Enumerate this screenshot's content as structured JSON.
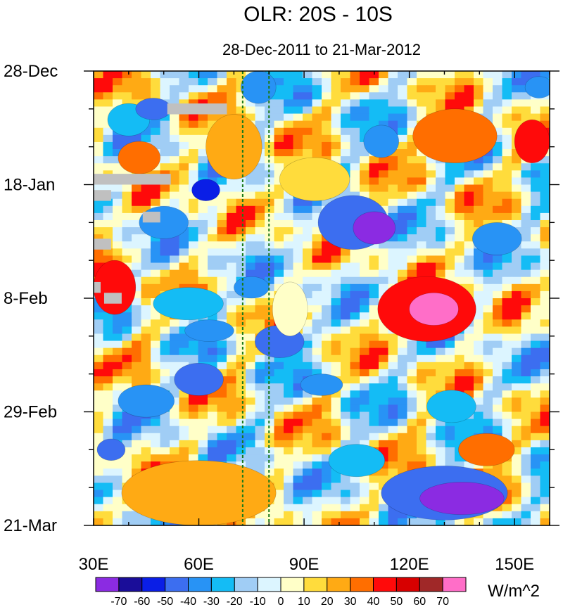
{
  "chart_data": {
    "type": "heatmap",
    "title": "OLR: 20S - 10S",
    "subtitle": "28-Dec-2011 to 21-Mar-2012",
    "x_label_unit": "longitude",
    "x_range": [
      30,
      160
    ],
    "x_ticks": [
      {
        "value": 30,
        "label": "30E"
      },
      {
        "value": 60,
        "label": "60E"
      },
      {
        "value": 90,
        "label": "90E"
      },
      {
        "value": 120,
        "label": "120E"
      },
      {
        "value": 150,
        "label": "150E"
      }
    ],
    "y_range_days": [
      0,
      84
    ],
    "y_ticks": [
      {
        "day": 0,
        "label": "28-Dec"
      },
      {
        "day": 21,
        "label": "18-Jan"
      },
      {
        "day": 42,
        "label": "8-Feb"
      },
      {
        "day": 63,
        "label": "29-Feb"
      },
      {
        "day": 84,
        "label": "21-Mar"
      }
    ],
    "reference_lines_lon": [
      72.5,
      80
    ],
    "colorbar": {
      "unit": "W/m^2",
      "levels": [
        "-70",
        "-60",
        "-50",
        "-40",
        "-30",
        "-20",
        "-10",
        "0",
        "10",
        "20",
        "30",
        "40",
        "50",
        "60",
        "70"
      ],
      "colors": [
        "#8b2be2",
        "#1a0d99",
        "#0a1ee6",
        "#3c6ef0",
        "#2893f5",
        "#14bcf5",
        "#a0cdf5",
        "#dcf5ff",
        "#ffffc8",
        "#ffdc3c",
        "#ffaa14",
        "#ff6e00",
        "#ff0a0a",
        "#d70000",
        "#a02828",
        "#ff6ec8"
      ]
    },
    "missing_color": "#c0c0c0",
    "blobs": [
      {
        "lon": 40,
        "day": 9,
        "rx": 6,
        "ry": 3,
        "level": 5
      },
      {
        "lon": 47,
        "day": 7,
        "rx": 5,
        "ry": 2,
        "level": 3
      },
      {
        "lon": 62,
        "day": 22,
        "rx": 4,
        "ry": 2,
        "level": 2
      },
      {
        "lon": 50,
        "day": 28,
        "rx": 7,
        "ry": 3,
        "level": 4
      },
      {
        "lon": 57,
        "day": 43,
        "rx": 10,
        "ry": 3,
        "level": 5
      },
      {
        "lon": 63,
        "day": 48,
        "rx": 7,
        "ry": 2,
        "level": 4
      },
      {
        "lon": 75,
        "day": 40,
        "rx": 5,
        "ry": 2,
        "level": 4
      },
      {
        "lon": 83,
        "day": 50,
        "rx": 7,
        "ry": 3,
        "level": 3
      },
      {
        "lon": 45,
        "day": 61,
        "rx": 8,
        "ry": 3,
        "level": 4
      },
      {
        "lon": 60,
        "day": 57,
        "rx": 7,
        "ry": 3,
        "level": 3
      },
      {
        "lon": 95,
        "day": 58,
        "rx": 6,
        "ry": 2,
        "level": 4
      },
      {
        "lon": 35,
        "day": 70,
        "rx": 4,
        "ry": 2,
        "level": 3
      },
      {
        "lon": 77,
        "day": 3,
        "rx": 5,
        "ry": 3,
        "level": 4
      },
      {
        "lon": 112,
        "day": 13,
        "rx": 5,
        "ry": 3,
        "level": 4
      },
      {
        "lon": 104,
        "day": 28,
        "rx": 10,
        "ry": 5,
        "level": 3
      },
      {
        "lon": 110,
        "day": 29,
        "rx": 6,
        "ry": 3,
        "level": 0
      },
      {
        "lon": 145,
        "day": 31,
        "rx": 7,
        "ry": 3,
        "level": 4
      },
      {
        "lon": 157,
        "day": 3,
        "rx": 4,
        "ry": 2,
        "level": 4
      },
      {
        "lon": 130,
        "day": 78,
        "rx": 18,
        "ry": 5,
        "level": 3
      },
      {
        "lon": 135,
        "day": 79,
        "rx": 12,
        "ry": 3,
        "level": 0
      },
      {
        "lon": 132,
        "day": 62,
        "rx": 7,
        "ry": 3,
        "level": 5
      },
      {
        "lon": 105,
        "day": 72,
        "rx": 8,
        "ry": 3,
        "level": 5
      },
      {
        "lon": 43,
        "day": 16,
        "rx": 6,
        "ry": 3,
        "level": 11
      },
      {
        "lon": 36,
        "day": 40,
        "rx": 6,
        "ry": 5,
        "level": 12
      },
      {
        "lon": 133,
        "day": 12,
        "rx": 12,
        "ry": 5,
        "level": 11
      },
      {
        "lon": 155,
        "day": 13,
        "rx": 5,
        "ry": 4,
        "level": 12
      },
      {
        "lon": 125,
        "day": 44,
        "rx": 14,
        "ry": 6,
        "level": 12
      },
      {
        "lon": 127,
        "day": 44,
        "rx": 7,
        "ry": 3,
        "level": 15
      },
      {
        "lon": 142,
        "day": 70,
        "rx": 8,
        "ry": 3,
        "level": 11
      },
      {
        "lon": 60,
        "day": 78,
        "rx": 22,
        "ry": 6,
        "level": 10
      },
      {
        "lon": 70,
        "day": 14,
        "rx": 8,
        "ry": 6,
        "level": 10
      },
      {
        "lon": 93,
        "day": 20,
        "rx": 10,
        "ry": 4,
        "level": 9
      },
      {
        "lon": 86,
        "day": 44,
        "rx": 5,
        "ry": 5,
        "level": 8
      }
    ],
    "missing_strips": [
      {
        "lon0": 51,
        "lon1": 68,
        "day0": 6,
        "day1": 8
      },
      {
        "lon0": 30,
        "lon1": 52,
        "day0": 19,
        "day1": 21
      },
      {
        "lon0": 30,
        "lon1": 35,
        "day0": 22,
        "day1": 24
      },
      {
        "lon0": 44,
        "lon1": 49,
        "day0": 26,
        "day1": 28
      },
      {
        "lon0": 30,
        "lon1": 35,
        "day0": 31,
        "day1": 33
      },
      {
        "lon0": 30,
        "lon1": 32,
        "day0": 39,
        "day1": 41
      },
      {
        "lon0": 33,
        "lon1": 38,
        "day0": 41,
        "day1": 43
      }
    ]
  }
}
